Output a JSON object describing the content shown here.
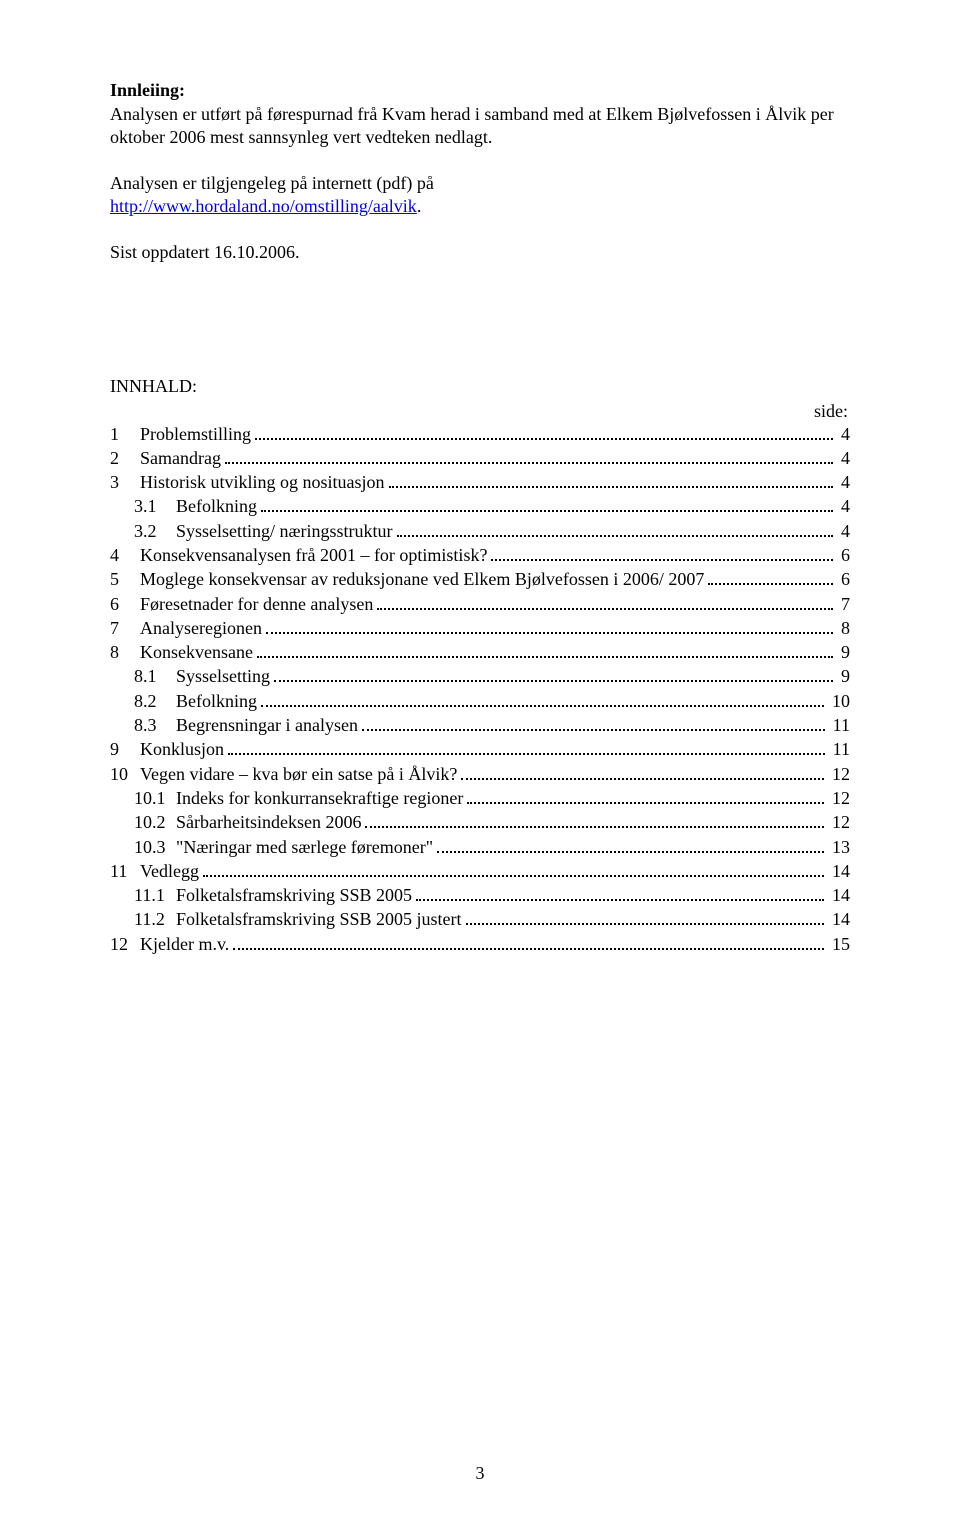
{
  "intro": {
    "heading": "Innleiing",
    "colon": ":",
    "p1": "Analysen er utført på førespurnad frå Kvam herad i samband med at Elkem Bjølvefossen i Ålvik per oktober 2006 mest sannsynleg vert vedteken nedlagt.",
    "p2a": "Analysen er tilgjengeleg på internett (pdf) på",
    "link_text": "http://www.hordaland.no/omstilling/aalvik",
    "link_suffix": ".",
    "p3": "Sist oppdatert 16.10.2006."
  },
  "toc": {
    "heading": "INNHALD:",
    "side": "side:",
    "entries": [
      {
        "level": 1,
        "num": "1",
        "title": "Problemstilling",
        "page": "4"
      },
      {
        "level": 1,
        "num": "2",
        "title": "Samandrag",
        "page": "4"
      },
      {
        "level": 1,
        "num": "3",
        "title": "Historisk utvikling og nosituasjon",
        "page": "4"
      },
      {
        "level": 2,
        "num": "3.1",
        "title": "Befolkning",
        "page": "4"
      },
      {
        "level": 2,
        "num": "3.2",
        "title": "Sysselsetting/ næringsstruktur",
        "page": "4"
      },
      {
        "level": 1,
        "num": "4",
        "title": "Konsekvensanalysen frå 2001 – for optimistisk?",
        "page": "6"
      },
      {
        "level": 1,
        "num": "5",
        "title": "Moglege konsekvensar av reduksjonane ved Elkem Bjølvefossen i 2006/ 2007",
        "page": "6"
      },
      {
        "level": 1,
        "num": "6",
        "title": "Føresetnader for denne analysen",
        "page": "7"
      },
      {
        "level": 1,
        "num": "7",
        "title": "Analyseregionen",
        "page": "8"
      },
      {
        "level": 1,
        "num": "8",
        "title": "Konsekvensane",
        "page": "9"
      },
      {
        "level": 2,
        "num": "8.1",
        "title": "Sysselsetting",
        "page": "9"
      },
      {
        "level": 2,
        "num": "8.2",
        "title": "Befolkning",
        "page": "10"
      },
      {
        "level": 2,
        "num": "8.3",
        "title": "Begrensningar i analysen",
        "page": "11"
      },
      {
        "level": 1,
        "num": "9",
        "title": "Konklusjon",
        "page": "11"
      },
      {
        "level": 1,
        "num": "10",
        "title": "Vegen vidare – kva bør ein satse på i Ålvik?",
        "page": "12"
      },
      {
        "level": 2,
        "num": "10.1",
        "title": "Indeks for konkurransekraftige regioner",
        "page": "12"
      },
      {
        "level": 2,
        "num": "10.2",
        "title": "Sårbarheitsindeksen 2006",
        "page": "12"
      },
      {
        "level": 2,
        "num": "10.3",
        "title": "\"Næringar med særlege føremoner\"",
        "page": "13"
      },
      {
        "level": 1,
        "num": "11",
        "title": "Vedlegg",
        "page": "14"
      },
      {
        "level": 2,
        "num": "11.1",
        "title": "Folketalsframskriving SSB 2005",
        "page": "14"
      },
      {
        "level": 2,
        "num": "11.2",
        "title": "Folketalsframskriving SSB 2005 justert",
        "page": "14"
      },
      {
        "level": 1,
        "num": "12",
        "title": "Kjelder m.v.",
        "page": "15"
      }
    ]
  },
  "page_number": "3"
}
